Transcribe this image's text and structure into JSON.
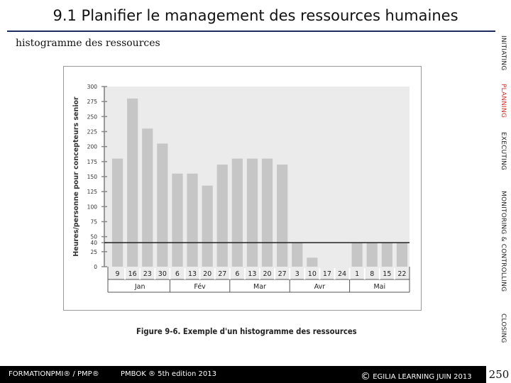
{
  "slide": {
    "title": "9.1 Planifier le management des ressources humaines",
    "subtitle": "histogramme des ressources",
    "figure_caption": "Figure 9-6. Exemple d'un histogramme des ressources",
    "page_number": "250"
  },
  "sidebar": {
    "phases": [
      "INITIATING",
      "PLANNING",
      "EXECUTING",
      "MONITORING & CONTROLLING",
      "CLOSING"
    ],
    "active_phase": "PLANNING",
    "active_color": "#d0312d"
  },
  "footer": {
    "formation": "FORMATIONPMI® / PMP®",
    "pmbok": "PMBOK ® 5th edition  2013",
    "copyright_symbol": "©",
    "egilia": "EGILIA LEARNING  JUIN 2013"
  },
  "chart_data": {
    "type": "bar",
    "ylabel": "Heures/personne pour concepteurs senior",
    "yticks": [
      0,
      25,
      40,
      50,
      75,
      100,
      125,
      150,
      175,
      200,
      225,
      250,
      275,
      300
    ],
    "ylim": [
      0,
      300
    ],
    "reference_line": 40,
    "categories": [
      "9",
      "16",
      "23",
      "30",
      "6",
      "13",
      "20",
      "27",
      "6",
      "13",
      "20",
      "27",
      "3",
      "10",
      "17",
      "24",
      "1",
      "8",
      "15",
      "22"
    ],
    "values": [
      180,
      280,
      230,
      205,
      155,
      155,
      135,
      170,
      180,
      180,
      180,
      170,
      40,
      15,
      0,
      0,
      40,
      40,
      40,
      40
    ],
    "months": [
      {
        "label": "Jan",
        "span": 4
      },
      {
        "label": "Fév",
        "span": 4
      },
      {
        "label": "Mar",
        "span": 4
      },
      {
        "label": "Avr",
        "span": 4
      },
      {
        "label": "Mai",
        "span": 4
      }
    ],
    "grid": true,
    "colors": {
      "bar": "#c6c6c6",
      "plot_bg": "#ebebeb",
      "line": "#222222"
    }
  }
}
